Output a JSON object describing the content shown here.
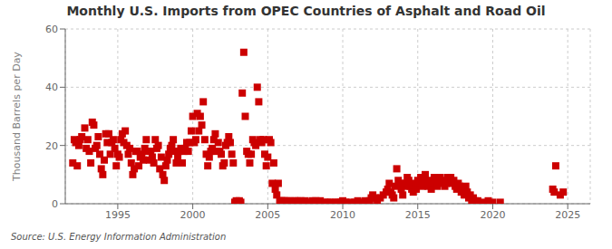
{
  "chart_data": {
    "type": "scatter",
    "title": "Monthly U.S. Imports from OPEC Countries of Asphalt and Road Oil",
    "ylabel": "Thousand Barrels per Day",
    "annotations": [
      "Source: U.S. Energy Information Administration"
    ],
    "xlim": [
      1991.5,
      2026.5
    ],
    "ylim": [
      0,
      60
    ],
    "xticks": [
      1995,
      2000,
      2005,
      2010,
      2015,
      2020,
      2025
    ],
    "yticks": [
      0,
      20,
      40,
      60
    ],
    "color": "#cc0000",
    "marker": "square",
    "grid": true,
    "x": [
      1992.0,
      1992.1,
      1992.2,
      1992.3,
      1992.4,
      1992.5,
      1992.6,
      1992.8,
      1992.9,
      1993.0,
      1993.1,
      1993.2,
      1993.3,
      1993.4,
      1993.5,
      1993.6,
      1993.7,
      1993.8,
      1993.9,
      1994.0,
      1994.1,
      1994.2,
      1994.3,
      1994.4,
      1994.5,
      1994.6,
      1994.7,
      1994.8,
      1994.9,
      1995.0,
      1995.1,
      1995.2,
      1995.3,
      1995.4,
      1995.5,
      1995.6,
      1995.7,
      1995.8,
      1995.9,
      1996.0,
      1996.1,
      1996.2,
      1996.3,
      1996.4,
      1996.5,
      1996.6,
      1996.7,
      1996.8,
      1996.9,
      1997.0,
      1997.1,
      1997.2,
      1997.3,
      1997.4,
      1997.5,
      1997.6,
      1997.7,
      1997.8,
      1997.9,
      1998.0,
      1998.1,
      1998.2,
      1998.3,
      1998.4,
      1998.5,
      1998.6,
      1998.7,
      1998.8,
      1998.9,
      1999.0,
      1999.1,
      1999.2,
      1999.3,
      1999.4,
      1999.5,
      1999.6,
      1999.7,
      1999.8,
      1999.9,
      2000.0,
      2000.1,
      2000.2,
      2000.3,
      2000.4,
      2000.5,
      2000.6,
      2000.7,
      2000.8,
      2000.9,
      2001.0,
      2001.1,
      2001.2,
      2001.3,
      2001.4,
      2001.5,
      2001.6,
      2001.7,
      2001.8,
      2001.9,
      2002.0,
      2002.1,
      2002.2,
      2002.3,
      2002.4,
      2002.5,
      2002.6,
      2002.7,
      2002.8,
      2002.9,
      2003.0,
      2003.1,
      2003.2,
      2003.3,
      2003.4,
      2003.5,
      2003.6,
      2003.7,
      2003.8,
      2003.9,
      2004.0,
      2004.1,
      2004.2,
      2004.3,
      2004.4,
      2004.5,
      2004.6,
      2004.7,
      2004.8,
      2004.9,
      2005.0,
      2005.1,
      2005.2,
      2005.3,
      2005.4,
      2005.5,
      2005.6,
      2005.7,
      2005.8,
      2005.9,
      2006.0,
      2006.1,
      2006.2,
      2006.3,
      2006.5,
      2006.6,
      2006.8,
      2007.0,
      2007.2,
      2007.5,
      2007.8,
      2008.0,
      2008.2,
      2008.5,
      2008.8,
      2009.0,
      2009.2,
      2009.5,
      2009.7,
      2009.9,
      2010.0,
      2010.2,
      2010.5,
      2010.8,
      2011.0,
      2011.2,
      2011.5,
      2011.8,
      2011.9,
      2012.0,
      2012.2,
      2012.3,
      2012.5,
      2012.7,
      2012.9,
      2013.0,
      2013.1,
      2013.2,
      2013.3,
      2013.4,
      2013.5,
      2013.6,
      2013.7,
      2013.8,
      2013.9,
      2014.0,
      2014.1,
      2014.2,
      2014.3,
      2014.4,
      2014.5,
      2014.6,
      2014.7,
      2014.8,
      2014.9,
      2015.0,
      2015.1,
      2015.2,
      2015.3,
      2015.4,
      2015.5,
      2015.6,
      2015.7,
      2015.8,
      2015.9,
      2016.0,
      2016.1,
      2016.2,
      2016.3,
      2016.4,
      2016.5,
      2016.6,
      2016.7,
      2016.8,
      2016.9,
      2017.0,
      2017.1,
      2017.2,
      2017.3,
      2017.4,
      2017.5,
      2017.6,
      2017.7,
      2017.8,
      2017.9,
      2018.0,
      2018.1,
      2018.2,
      2018.3,
      2018.4,
      2018.5,
      2018.6,
      2018.7,
      2018.8,
      2018.9,
      2019.0,
      2019.3,
      2019.7,
      2020.0,
      2020.5,
      2024.0,
      2024.1,
      2024.2,
      2024.5,
      2024.7
    ],
    "values": [
      14,
      22,
      21,
      13,
      20,
      22,
      23,
      26,
      19,
      22,
      18,
      14,
      28,
      27,
      19,
      20,
      23,
      17,
      12,
      10,
      15,
      24,
      21,
      24,
      17,
      21,
      22,
      19,
      13,
      17,
      16,
      22,
      24,
      21,
      25,
      20,
      17,
      19,
      14,
      10,
      12,
      18,
      18,
      13,
      16,
      17,
      15,
      19,
      22,
      18,
      15,
      18,
      16,
      14,
      22,
      19,
      20,
      12,
      16,
      10,
      8,
      13,
      15,
      17,
      19,
      20,
      22,
      18,
      14,
      16,
      18,
      19,
      14,
      18,
      19,
      21,
      18,
      21,
      25,
      30,
      21,
      22,
      31,
      25,
      30,
      27,
      35,
      22,
      17,
      13,
      16,
      18,
      19,
      22,
      24,
      18,
      21,
      18,
      17,
      13,
      14,
      20,
      21,
      23,
      21,
      17,
      14,
      0.5,
      1.0,
      0.5,
      1.0,
      0.5,
      38,
      52,
      30,
      18,
      17,
      14,
      17,
      22,
      21,
      20,
      40,
      35,
      22,
      21,
      22,
      17,
      13,
      16,
      22,
      21,
      7,
      14,
      5,
      3,
      7,
      1,
      1,
      1,
      1,
      0.5,
      1,
      1,
      0.5,
      1,
      1,
      1,
      1,
      0.5,
      1,
      1,
      1,
      0.5,
      0.5,
      0.5,
      0.5,
      0.5,
      0.5,
      1,
      0.5,
      0.5,
      0.5,
      1,
      0.5,
      1,
      1,
      2,
      3,
      2,
      1,
      2,
      3,
      4,
      5,
      7,
      4,
      3,
      2,
      6,
      12,
      8,
      7,
      5,
      3,
      6,
      7,
      9,
      8,
      6,
      5,
      4,
      7,
      5,
      8,
      7,
      9,
      6,
      8,
      10,
      7,
      6,
      8,
      5,
      7,
      9,
      7,
      6,
      8,
      9,
      7,
      8,
      6,
      7,
      9,
      8,
      9,
      7,
      8,
      6,
      5,
      7,
      6,
      4,
      5,
      3,
      6,
      4,
      2,
      3,
      1,
      2,
      1,
      0.5,
      1,
      0.5,
      1,
      0.5,
      0.5,
      5,
      4,
      13,
      3,
      4
    ]
  }
}
